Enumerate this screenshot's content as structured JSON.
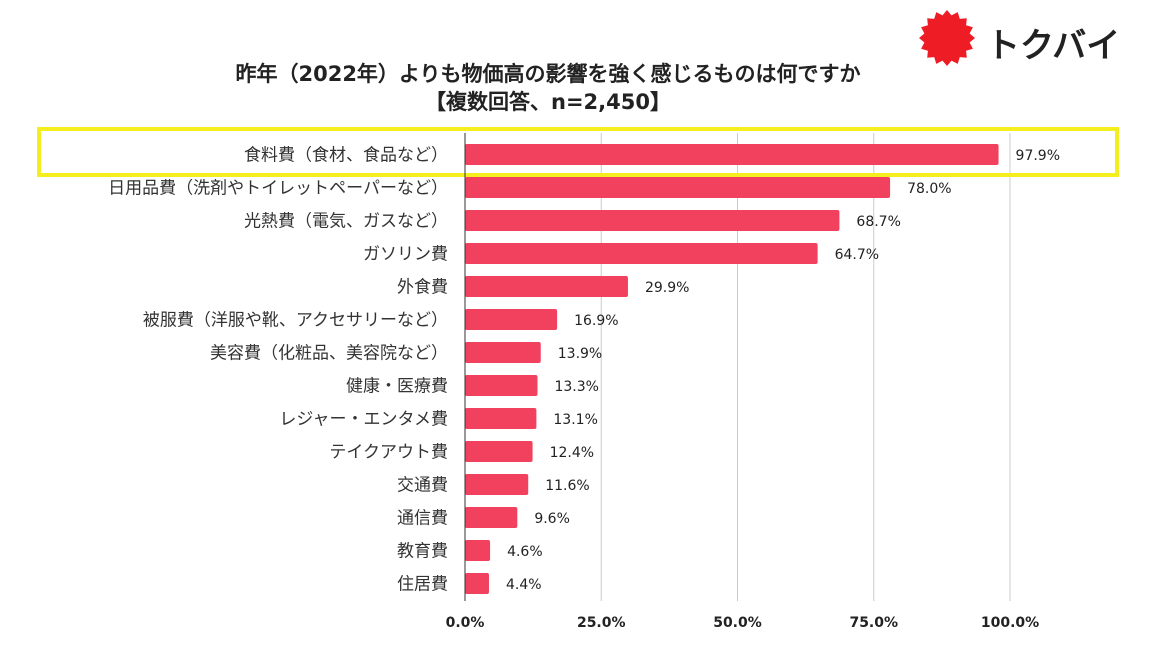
{
  "brand": {
    "name": "トクバイ",
    "color": "#ee1c25"
  },
  "chart_data": {
    "type": "bar",
    "orientation": "horizontal",
    "title": "昨年（2022年）よりも物価高の影響を強く感じるものは何ですか",
    "subtitle": "【複数回答、n=2,450】",
    "categories": [
      "食料費（食材、食品など）",
      "日用品費（洗剤やトイレットペーパーなど）",
      "光熱費（電気、ガスなど）",
      "ガソリン費",
      "外食費",
      "被服費（洋服や靴、アクセサリーなど）",
      "美容費（化粧品、美容院など）",
      "健康・医療費",
      "レジャー・エンタメ費",
      "テイクアウト費",
      "交通費",
      "通信費",
      "教育費",
      "住居費"
    ],
    "values": [
      97.9,
      78.0,
      68.7,
      64.7,
      29.9,
      16.9,
      13.9,
      13.3,
      13.1,
      12.4,
      11.6,
      9.6,
      4.6,
      4.4
    ],
    "value_labels": [
      "97.9%",
      "78.0%",
      "68.7%",
      "64.7%",
      "29.9%",
      "16.9%",
      "13.9%",
      "13.3%",
      "13.1%",
      "12.4%",
      "11.6%",
      "9.6%",
      "4.6%",
      "4.4%"
    ],
    "xlim": [
      0,
      100
    ],
    "ticks": [
      0,
      25,
      50,
      75,
      100
    ],
    "tick_labels": [
      "0.0%",
      "25.0%",
      "50.0%",
      "75.0%",
      "100.0%"
    ],
    "grid": true,
    "highlighted_index": 0,
    "colors": {
      "bar": "#f2415e",
      "grid": "#cccccc",
      "highlight": "#f5ee1f"
    }
  }
}
